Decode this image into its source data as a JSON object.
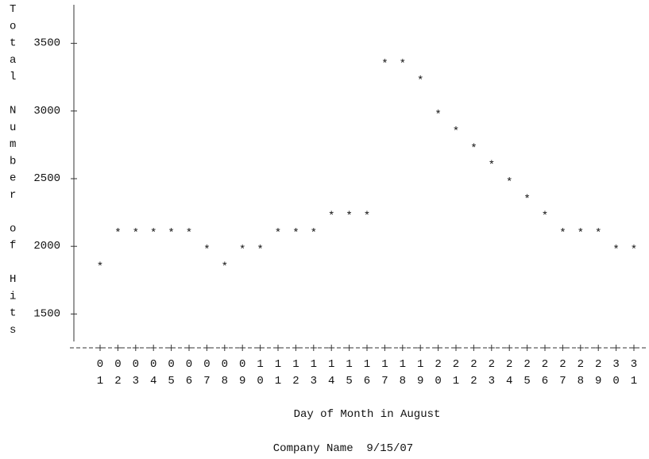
{
  "chart_data": {
    "type": "scatter",
    "y_label": "Total Number of Hits",
    "x_label": "Day of Month in August",
    "footnote": "Company Name  9/15/07",
    "marker": "*",
    "categories": [
      "01",
      "02",
      "03",
      "04",
      "05",
      "06",
      "07",
      "08",
      "09",
      "10",
      "11",
      "12",
      "13",
      "14",
      "15",
      "16",
      "17",
      "18",
      "19",
      "20",
      "21",
      "22",
      "23",
      "24",
      "25",
      "26",
      "27",
      "28",
      "29",
      "30",
      "31"
    ],
    "values": [
      1875,
      2125,
      2125,
      2125,
      2125,
      2125,
      2000,
      1875,
      2000,
      2000,
      2125,
      2125,
      2125,
      2250,
      2250,
      2250,
      3375,
      3375,
      3250,
      3000,
      2875,
      2750,
      2625,
      2500,
      2375,
      2250,
      2125,
      2125,
      2125,
      2000,
      2000
    ],
    "ylim": [
      1250,
      3750
    ],
    "yticks": [
      1500,
      2000,
      2500,
      3000,
      3500
    ]
  }
}
